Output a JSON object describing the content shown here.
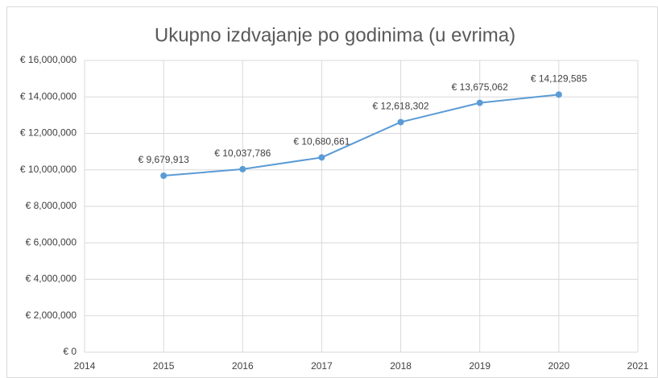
{
  "chart_data": {
    "type": "line",
    "title": "Ukupno izdvajanje po godinima (u evrima)",
    "x": [
      2015,
      2016,
      2017,
      2018,
      2019,
      2020
    ],
    "series": [
      {
        "name": "Ukupno izdvajanje",
        "color": "#5b9bd5",
        "values": [
          9679913,
          10037786,
          10680661,
          12618302,
          13675062,
          14129585
        ],
        "value_labels": [
          "€ 9,679,913",
          "€ 10,037,786",
          "€ 10,680,661",
          "€ 12,618,302",
          "€ 13,675,062",
          "€ 14,129,585"
        ]
      }
    ],
    "xlim": [
      2014,
      2021
    ],
    "xticks": [
      2014,
      2015,
      2016,
      2017,
      2018,
      2019,
      2020,
      2021
    ],
    "ylim": [
      0,
      16000000
    ],
    "yticks": [
      {
        "value": 0,
        "label": "€ 0"
      },
      {
        "value": 2000000,
        "label": "€ 2,000,000"
      },
      {
        "value": 4000000,
        "label": "€ 4,000,000"
      },
      {
        "value": 6000000,
        "label": "€ 6,000,000"
      },
      {
        "value": 8000000,
        "label": "€ 8,000,000"
      },
      {
        "value": 10000000,
        "label": "€ 10,000,000"
      },
      {
        "value": 12000000,
        "label": "€ 12,000,000"
      },
      {
        "value": 14000000,
        "label": "€ 14,000,000"
      },
      {
        "value": 16000000,
        "label": "€ 16,000,000"
      }
    ],
    "grid": true
  }
}
